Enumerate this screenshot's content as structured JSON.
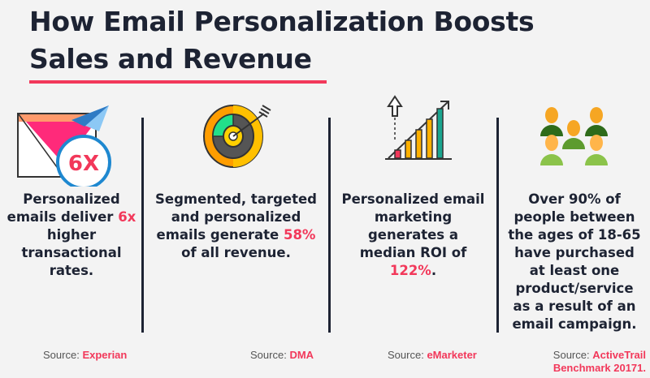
{
  "title_line1": "How Email Personalization Boosts",
  "title_line2": "Sales and Revenue",
  "colors": {
    "accent": "#f2385a",
    "text": "#1d2333",
    "background": "#f3f3f3"
  },
  "columns": [
    {
      "icon": "envelope-paper-plane-icon",
      "badge": "6X",
      "text_before": "Personalized emails deliver ",
      "highlight": "6x",
      "text_after": " higher transactional rates.",
      "source_label": "Source:",
      "source": "Experian"
    },
    {
      "icon": "target-arrow-icon",
      "text_before": "Segmented, targeted and personalized emails generate ",
      "highlight": "58%",
      "text_after": " of all revenue.",
      "source_label": "Source:",
      "source": "DMA"
    },
    {
      "icon": "growth-bar-chart-icon",
      "text_before": "Personalized email marketing generates a median ROI of ",
      "highlight": "122%",
      "text_after": ".",
      "source_label": "Source:",
      "source": "eMarketer"
    },
    {
      "icon": "people-group-icon",
      "text_before": "Over 90% of people between the ages of 18-65 have purchased at least one product/service as a result of an email campaign.",
      "highlight": "",
      "text_after": "",
      "source_label": "Source:",
      "source": "ActiveTrail Benchmark 20171."
    }
  ]
}
